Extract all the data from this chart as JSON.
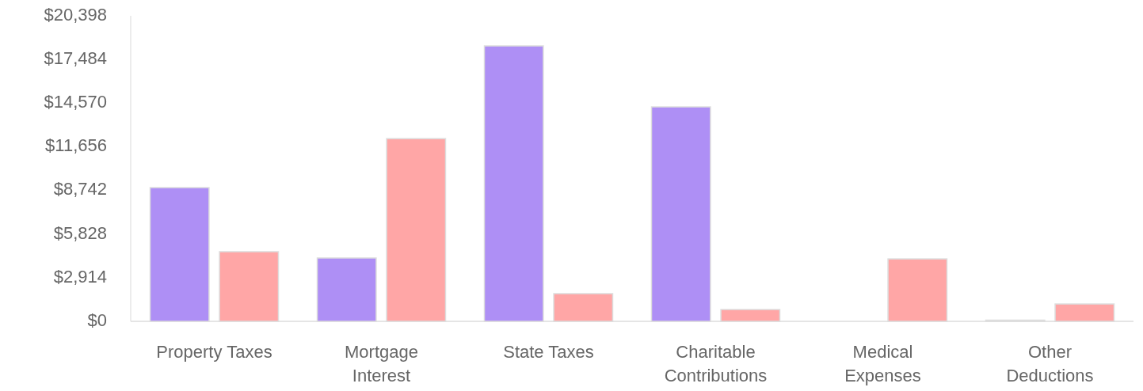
{
  "chart_data": {
    "type": "bar",
    "categories": [
      "Property Taxes",
      "Mortgage Interest",
      "State Taxes",
      "Charitable Contributions",
      "Medical Expenses",
      "Other Deductions"
    ],
    "series": [
      {
        "color": "#ae8ff5",
        "values": [
          8930,
          4230,
          18390,
          14320,
          0,
          80
        ]
      },
      {
        "color": "#ffa6a6",
        "values": [
          4650,
          12200,
          1850,
          790,
          4170,
          1160
        ]
      }
    ],
    "ylim": [
      0,
      20398
    ],
    "yticks": [
      {
        "value": 0,
        "label": "$0"
      },
      {
        "value": 2914,
        "label": "$2,914"
      },
      {
        "value": 5828,
        "label": "$5,828"
      },
      {
        "value": 8742,
        "label": "$8,742"
      },
      {
        "value": 11656,
        "label": "$11,656"
      },
      {
        "value": 14570,
        "label": "$14,570"
      },
      {
        "value": 17484,
        "label": "$17,484"
      },
      {
        "value": 20398,
        "label": "$20,398"
      }
    ],
    "grid": false
  }
}
